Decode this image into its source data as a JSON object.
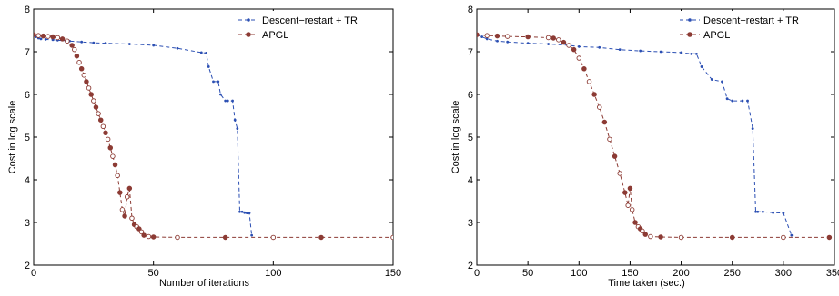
{
  "chart_data": [
    {
      "type": "line",
      "xlabel": "Number of iterations",
      "ylabel": "Cost in log scale",
      "xlim": [
        0,
        150
      ],
      "ylim": [
        2,
        8
      ],
      "xticks": [
        0,
        50,
        100,
        150
      ],
      "yticks": [
        2,
        3,
        4,
        5,
        6,
        7,
        8
      ],
      "grid": false,
      "legend_position": "top-right",
      "series": [
        {
          "name": "Descent−restart + TR",
          "color": "#2b4fb3",
          "marker": "dot",
          "x": [
            0,
            1,
            2,
            3,
            5,
            8,
            10,
            15,
            20,
            25,
            30,
            40,
            50,
            60,
            70,
            72,
            73,
            75,
            77,
            78,
            80,
            81,
            83,
            84,
            85,
            86,
            87,
            88,
            89,
            90,
            91
          ],
          "y": [
            7.4,
            7.35,
            7.32,
            7.3,
            7.29,
            7.28,
            7.27,
            7.25,
            7.23,
            7.21,
            7.2,
            7.18,
            7.15,
            7.08,
            6.98,
            6.97,
            6.65,
            6.3,
            6.3,
            6.0,
            5.85,
            5.85,
            5.85,
            5.4,
            5.2,
            3.25,
            3.25,
            3.23,
            3.22,
            3.22,
            2.7
          ]
        },
        {
          "name": "APGL",
          "color": "#8c3b34",
          "marker": "circle",
          "x": [
            0,
            2,
            4,
            6,
            8,
            10,
            12,
            14,
            16,
            17,
            18,
            19,
            20,
            21,
            22,
            23,
            24,
            25,
            26,
            27,
            28,
            29,
            30,
            31,
            32,
            33,
            34,
            35,
            36,
            37,
            38,
            39,
            40,
            41,
            42,
            43,
            44,
            45,
            46,
            48,
            50,
            60,
            80,
            100,
            120,
            150
          ],
          "y": [
            7.4,
            7.38,
            7.37,
            7.36,
            7.35,
            7.33,
            7.3,
            7.25,
            7.15,
            7.05,
            6.9,
            6.75,
            6.6,
            6.45,
            6.3,
            6.15,
            6.0,
            5.85,
            5.7,
            5.55,
            5.4,
            5.25,
            5.1,
            4.95,
            4.75,
            4.55,
            4.35,
            4.1,
            3.7,
            3.3,
            3.15,
            3.6,
            3.8,
            3.1,
            2.95,
            2.9,
            2.85,
            2.78,
            2.7,
            2.67,
            2.66,
            2.65,
            2.65,
            2.65,
            2.65,
            2.65
          ]
        }
      ]
    },
    {
      "type": "line",
      "xlabel": "Time taken (sec.)",
      "ylabel": "Cost in log scale",
      "xlim": [
        0,
        350
      ],
      "ylim": [
        2,
        8
      ],
      "xticks": [
        0,
        50,
        100,
        150,
        200,
        250,
        300,
        350
      ],
      "yticks": [
        2,
        3,
        4,
        5,
        6,
        7,
        8
      ],
      "grid": false,
      "legend_position": "top-right",
      "series": [
        {
          "name": "Descent−restart + TR",
          "color": "#2b4fb3",
          "marker": "dot",
          "x": [
            0,
            5,
            10,
            20,
            30,
            50,
            70,
            90,
            100,
            120,
            140,
            160,
            180,
            200,
            210,
            215,
            220,
            230,
            240,
            245,
            250,
            260,
            265,
            270,
            273,
            275,
            280,
            290,
            300,
            308
          ],
          "y": [
            7.4,
            7.35,
            7.3,
            7.25,
            7.23,
            7.2,
            7.18,
            7.15,
            7.12,
            7.1,
            7.05,
            7.02,
            7.0,
            6.98,
            6.95,
            6.95,
            6.65,
            6.35,
            6.3,
            5.9,
            5.85,
            5.85,
            5.85,
            5.2,
            3.25,
            3.25,
            3.25,
            3.23,
            3.22,
            2.7
          ]
        },
        {
          "name": "APGL",
          "color": "#8c3b34",
          "marker": "circle",
          "x": [
            0,
            10,
            20,
            30,
            50,
            70,
            75,
            80,
            85,
            90,
            95,
            100,
            105,
            110,
            115,
            120,
            125,
            130,
            135,
            140,
            145,
            148,
            150,
            152,
            155,
            158,
            160,
            162,
            165,
            170,
            180,
            200,
            250,
            300,
            345
          ],
          "y": [
            7.4,
            7.38,
            7.37,
            7.36,
            7.35,
            7.33,
            7.32,
            7.28,
            7.22,
            7.15,
            7.05,
            6.85,
            6.6,
            6.3,
            6.0,
            5.7,
            5.35,
            4.95,
            4.55,
            4.15,
            3.7,
            3.4,
            3.8,
            3.3,
            3.0,
            2.9,
            2.85,
            2.8,
            2.72,
            2.67,
            2.66,
            2.65,
            2.65,
            2.65,
            2.65
          ]
        }
      ]
    }
  ]
}
